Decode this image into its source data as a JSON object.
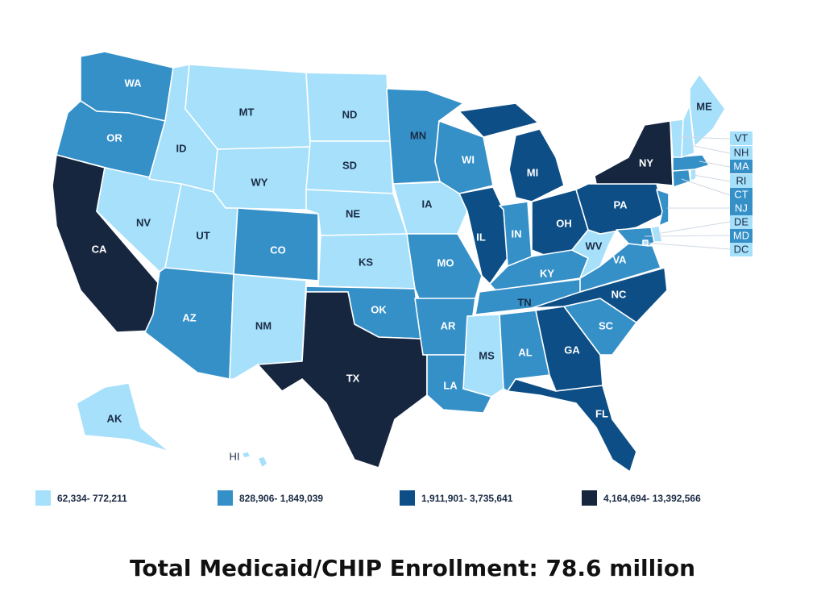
{
  "title": "Total Medicaid/CHIP Enrollment: 78.6 million",
  "colors": {
    "tier1": "#a6e0fb",
    "tier2": "#3590c8",
    "tier3": "#0d4e86",
    "tier4": "#17263f",
    "background": "#ffffff",
    "border": "#ffffff"
  },
  "legend": [
    {
      "tier": "tier1",
      "label": "62,334- 772,211"
    },
    {
      "tier": "tier2",
      "label": "828,906- 1,849,039"
    },
    {
      "tier": "tier3",
      "label": "1,911,901- 3,735,641"
    },
    {
      "tier": "tier4",
      "label": "4,164,694- 13,392,566"
    }
  ],
  "states": [
    {
      "abbr": "WA",
      "tier": "tier2"
    },
    {
      "abbr": "OR",
      "tier": "tier2"
    },
    {
      "abbr": "CA",
      "tier": "tier4"
    },
    {
      "abbr": "NV",
      "tier": "tier1"
    },
    {
      "abbr": "ID",
      "tier": "tier1"
    },
    {
      "abbr": "MT",
      "tier": "tier1"
    },
    {
      "abbr": "WY",
      "tier": "tier1"
    },
    {
      "abbr": "UT",
      "tier": "tier1"
    },
    {
      "abbr": "AZ",
      "tier": "tier2"
    },
    {
      "abbr": "CO",
      "tier": "tier2"
    },
    {
      "abbr": "NM",
      "tier": "tier1"
    },
    {
      "abbr": "ND",
      "tier": "tier1"
    },
    {
      "abbr": "SD",
      "tier": "tier1"
    },
    {
      "abbr": "NE",
      "tier": "tier1"
    },
    {
      "abbr": "KS",
      "tier": "tier1"
    },
    {
      "abbr": "OK",
      "tier": "tier2"
    },
    {
      "abbr": "TX",
      "tier": "tier4"
    },
    {
      "abbr": "MN",
      "tier": "tier2"
    },
    {
      "abbr": "IA",
      "tier": "tier1"
    },
    {
      "abbr": "MO",
      "tier": "tier2"
    },
    {
      "abbr": "AR",
      "tier": "tier2"
    },
    {
      "abbr": "LA",
      "tier": "tier2"
    },
    {
      "abbr": "WI",
      "tier": "tier2"
    },
    {
      "abbr": "IL",
      "tier": "tier3"
    },
    {
      "abbr": "MI",
      "tier": "tier3"
    },
    {
      "abbr": "IN",
      "tier": "tier2"
    },
    {
      "abbr": "OH",
      "tier": "tier3"
    },
    {
      "abbr": "KY",
      "tier": "tier2"
    },
    {
      "abbr": "TN",
      "tier": "tier2"
    },
    {
      "abbr": "MS",
      "tier": "tier1"
    },
    {
      "abbr": "AL",
      "tier": "tier2"
    },
    {
      "abbr": "GA",
      "tier": "tier3"
    },
    {
      "abbr": "FL",
      "tier": "tier3"
    },
    {
      "abbr": "SC",
      "tier": "tier2"
    },
    {
      "abbr": "NC",
      "tier": "tier3"
    },
    {
      "abbr": "VA",
      "tier": "tier2"
    },
    {
      "abbr": "WV",
      "tier": "tier1"
    },
    {
      "abbr": "PA",
      "tier": "tier3"
    },
    {
      "abbr": "NY",
      "tier": "tier4"
    },
    {
      "abbr": "ME",
      "tier": "tier1"
    },
    {
      "abbr": "AK",
      "tier": "tier1"
    },
    {
      "abbr": "HI",
      "tier": "tier1"
    },
    {
      "abbr": "VT",
      "tier": "tier1"
    },
    {
      "abbr": "NH",
      "tier": "tier1"
    },
    {
      "abbr": "MA",
      "tier": "tier2"
    },
    {
      "abbr": "RI",
      "tier": "tier1"
    },
    {
      "abbr": "CT",
      "tier": "tier2"
    },
    {
      "abbr": "NJ",
      "tier": "tier2"
    },
    {
      "abbr": "DE",
      "tier": "tier1"
    },
    {
      "abbr": "MD",
      "tier": "tier2"
    },
    {
      "abbr": "DC",
      "tier": "tier1"
    }
  ]
}
